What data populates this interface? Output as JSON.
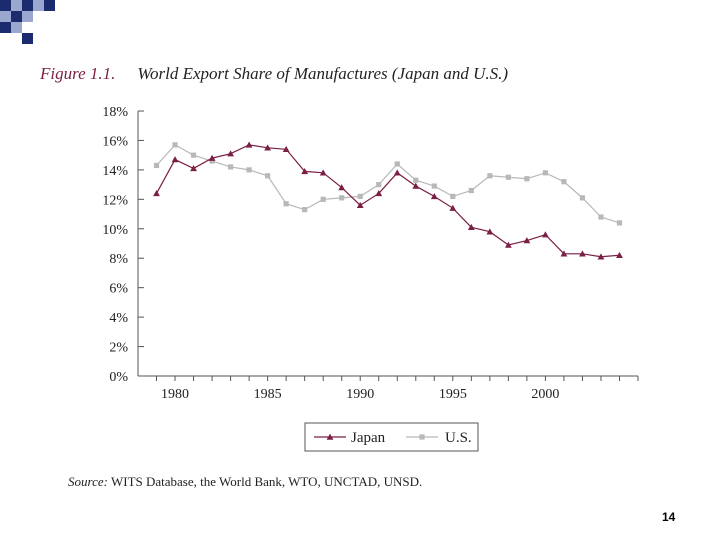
{
  "slide": {
    "page_number": "14"
  },
  "figure": {
    "label": "Figure 1.1.",
    "title": "World Export Share of Manufactures (Japan and U.S.)"
  },
  "source": {
    "label": "Source:",
    "text": "WITS Database, the World Bank, WTO, UNCTAD, UNSD."
  },
  "colors": {
    "japan": "#7a1f45",
    "us": "#b8b8b8",
    "accent_dark": "#1c2a6e",
    "accent_light": "#9aa8cf"
  },
  "chart_data": {
    "type": "line",
    "title": "World Export Share of Manufactures (Japan and U.S.)",
    "xlabel": "",
    "ylabel": "",
    "x": [
      1979,
      1980,
      1981,
      1982,
      1983,
      1984,
      1985,
      1986,
      1987,
      1988,
      1989,
      1990,
      1991,
      1992,
      1993,
      1994,
      1995,
      1996,
      1997,
      1998,
      1999,
      2000,
      2001,
      2002,
      2003,
      2004
    ],
    "xlim": [
      1978,
      2005
    ],
    "ylim": [
      0,
      18
    ],
    "x_ticks": [
      1980,
      1985,
      1990,
      1995,
      2000
    ],
    "x_tick_labels": [
      "1980",
      "1985",
      "1990",
      "1995",
      "2000"
    ],
    "y_ticks": [
      0,
      2,
      4,
      6,
      8,
      10,
      12,
      14,
      16,
      18
    ],
    "y_tick_labels": [
      "0%",
      "2%",
      "4%",
      "6%",
      "8%",
      "10%",
      "12%",
      "14%",
      "16%",
      "18%"
    ],
    "legend_position": "bottom",
    "series": [
      {
        "name": "Japan",
        "marker": "triangle",
        "color": "#7a1f45",
        "values": [
          12.4,
          14.7,
          14.1,
          14.8,
          15.1,
          15.7,
          15.5,
          15.4,
          13.9,
          13.8,
          12.8,
          11.6,
          12.4,
          13.8,
          12.9,
          12.2,
          11.4,
          10.1,
          9.8,
          8.9,
          9.2,
          9.6,
          8.3,
          8.3,
          8.1,
          8.2
        ]
      },
      {
        "name": "U.S.",
        "marker": "square",
        "color": "#b8b8b8",
        "values": [
          14.3,
          15.7,
          15.0,
          14.6,
          14.2,
          14.0,
          13.6,
          11.7,
          11.3,
          12.0,
          12.1,
          12.2,
          13.0,
          14.4,
          13.3,
          12.9,
          12.2,
          12.6,
          13.6,
          13.5,
          13.4,
          13.8,
          13.2,
          12.1,
          10.8,
          10.4
        ]
      }
    ]
  }
}
